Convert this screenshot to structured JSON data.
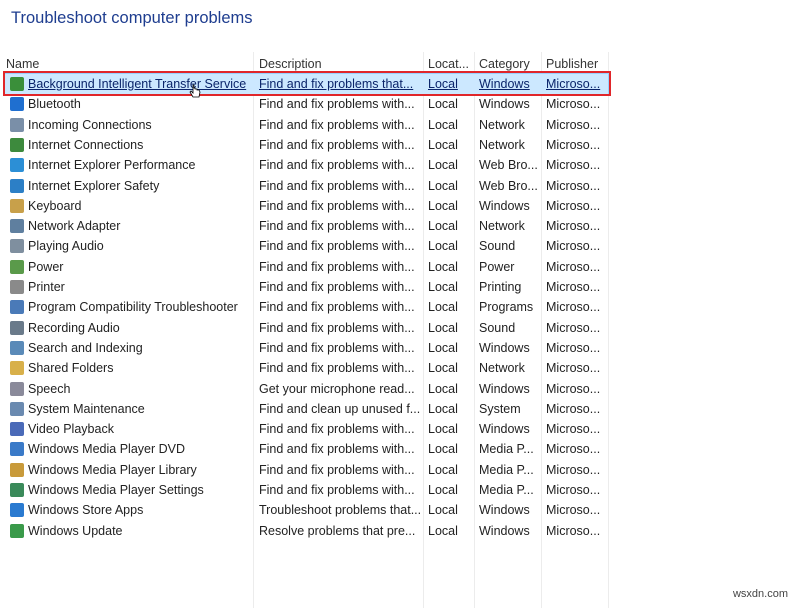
{
  "title": "Troubleshoot computer problems",
  "columns": [
    "Name",
    "Description",
    "Locat...",
    "Category",
    "Publisher"
  ],
  "rows": [
    {
      "name": "Background Intelligent Transfer Service",
      "desc": "Find and fix problems that...",
      "loc": "Local",
      "cat": "Windows",
      "pub": "Microso...",
      "icon": "bits-icon",
      "color": "#3a8f3a",
      "selected": true
    },
    {
      "name": "Bluetooth",
      "desc": "Find and fix problems with...",
      "loc": "Local",
      "cat": "Windows",
      "pub": "Microso...",
      "icon": "bluetooth-icon",
      "color": "#1f6fd0"
    },
    {
      "name": "Incoming Connections",
      "desc": "Find and fix problems with...",
      "loc": "Local",
      "cat": "Network",
      "pub": "Microso...",
      "icon": "incoming-connections-icon",
      "color": "#7a8fa8"
    },
    {
      "name": "Internet Connections",
      "desc": "Find and fix problems with...",
      "loc": "Local",
      "cat": "Network",
      "pub": "Microso...",
      "icon": "internet-connections-icon",
      "color": "#3d8a3d"
    },
    {
      "name": "Internet Explorer Performance",
      "desc": "Find and fix problems with...",
      "loc": "Local",
      "cat": "Web Bro...",
      "pub": "Microso...",
      "icon": "ie-performance-icon",
      "color": "#2c8fd6"
    },
    {
      "name": "Internet Explorer Safety",
      "desc": "Find and fix problems with...",
      "loc": "Local",
      "cat": "Web Bro...",
      "pub": "Microso...",
      "icon": "ie-safety-icon",
      "color": "#2c7fc6"
    },
    {
      "name": "Keyboard",
      "desc": "Find and fix problems with...",
      "loc": "Local",
      "cat": "Windows",
      "pub": "Microso...",
      "icon": "keyboard-icon",
      "color": "#c8a04a"
    },
    {
      "name": "Network Adapter",
      "desc": "Find and fix problems with...",
      "loc": "Local",
      "cat": "Network",
      "pub": "Microso...",
      "icon": "network-adapter-icon",
      "color": "#5f7f9f"
    },
    {
      "name": "Playing Audio",
      "desc": "Find and fix problems with...",
      "loc": "Local",
      "cat": "Sound",
      "pub": "Microso...",
      "icon": "audio-icon",
      "color": "#7f8f9f"
    },
    {
      "name": "Power",
      "desc": "Find and fix problems with...",
      "loc": "Local",
      "cat": "Power",
      "pub": "Microso...",
      "icon": "power-icon",
      "color": "#5a9a4a"
    },
    {
      "name": "Printer",
      "desc": "Find and fix problems with...",
      "loc": "Local",
      "cat": "Printing",
      "pub": "Microso...",
      "icon": "printer-icon",
      "color": "#8a8a8a"
    },
    {
      "name": "Program Compatibility Troubleshooter",
      "desc": "Find and fix problems with...",
      "loc": "Local",
      "cat": "Programs",
      "pub": "Microso...",
      "icon": "program-compat-icon",
      "color": "#4a7ab8"
    },
    {
      "name": "Recording Audio",
      "desc": "Find and fix problems with...",
      "loc": "Local",
      "cat": "Sound",
      "pub": "Microso...",
      "icon": "microphone-icon",
      "color": "#6a7a8a"
    },
    {
      "name": "Search and Indexing",
      "desc": "Find and fix problems with...",
      "loc": "Local",
      "cat": "Windows",
      "pub": "Microso...",
      "icon": "search-icon",
      "color": "#5a8ab8"
    },
    {
      "name": "Shared Folders",
      "desc": "Find and fix problems with...",
      "loc": "Local",
      "cat": "Network",
      "pub": "Microso...",
      "icon": "shared-folder-icon",
      "color": "#d8b04a"
    },
    {
      "name": "Speech",
      "desc": "Get your microphone read...",
      "loc": "Local",
      "cat": "Windows",
      "pub": "Microso...",
      "icon": "speech-icon",
      "color": "#8a8a9a"
    },
    {
      "name": "System Maintenance",
      "desc": "Find and clean up unused f...",
      "loc": "Local",
      "cat": "System",
      "pub": "Microso...",
      "icon": "maintenance-icon",
      "color": "#6a8ab0"
    },
    {
      "name": "Video Playback",
      "desc": "Find and fix problems with...",
      "loc": "Local",
      "cat": "Windows",
      "pub": "Microso...",
      "icon": "video-icon",
      "color": "#4a6ab8"
    },
    {
      "name": "Windows Media Player DVD",
      "desc": "Find and fix problems with...",
      "loc": "Local",
      "cat": "Media P...",
      "pub": "Microso...",
      "icon": "wmp-dvd-icon",
      "color": "#3a7ac8"
    },
    {
      "name": "Windows Media Player Library",
      "desc": "Find and fix problems with...",
      "loc": "Local",
      "cat": "Media P...",
      "pub": "Microso...",
      "icon": "wmp-library-icon",
      "color": "#c89a3a"
    },
    {
      "name": "Windows Media Player Settings",
      "desc": "Find and fix problems with...",
      "loc": "Local",
      "cat": "Media P...",
      "pub": "Microso...",
      "icon": "wmp-settings-icon",
      "color": "#3a8a5a"
    },
    {
      "name": "Windows Store Apps",
      "desc": "Troubleshoot problems that...",
      "loc": "Local",
      "cat": "Windows",
      "pub": "Microso...",
      "icon": "store-icon",
      "color": "#2a7ad0"
    },
    {
      "name": "Windows Update",
      "desc": "Resolve problems that pre...",
      "loc": "Local",
      "cat": "Windows",
      "pub": "Microso...",
      "icon": "windows-update-icon",
      "color": "#3a9a4a"
    }
  ],
  "watermark": "wsxdn.com"
}
